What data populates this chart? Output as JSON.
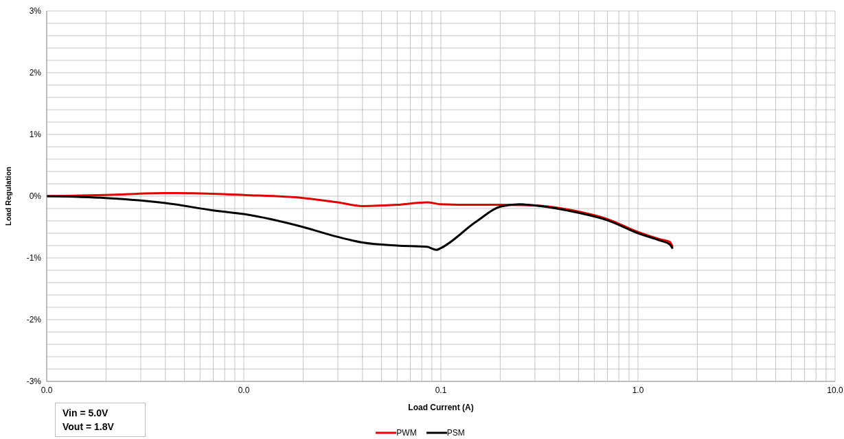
{
  "chart_data": {
    "type": "line",
    "xlabel": "Load Current (A)",
    "ylabel": "Load Regulation",
    "log": "x",
    "grid": true,
    "legend": "bottom",
    "marker": "none",
    "line_style": "solid",
    "xlim": [
      0.001,
      10
    ],
    "xticks": [
      {
        "value": 0.001,
        "label": "0.0"
      },
      {
        "value": 0.002,
        "label": null
      },
      {
        "value": 0.003,
        "label": null
      },
      {
        "value": 0.004,
        "label": null
      },
      {
        "value": 0.005,
        "label": null
      },
      {
        "value": 0.006,
        "label": null
      },
      {
        "value": 0.007,
        "label": null
      },
      {
        "value": 0.008,
        "label": null
      },
      {
        "value": 0.009,
        "label": null
      },
      {
        "value": 0.01,
        "label": "0.0"
      },
      {
        "value": 0.02,
        "label": null
      },
      {
        "value": 0.03,
        "label": null
      },
      {
        "value": 0.04,
        "label": null
      },
      {
        "value": 0.05,
        "label": null
      },
      {
        "value": 0.06,
        "label": null
      },
      {
        "value": 0.07,
        "label": null
      },
      {
        "value": 0.08,
        "label": null
      },
      {
        "value": 0.09,
        "label": null
      },
      {
        "value": 0.1,
        "label": "0.1"
      },
      {
        "value": 0.2,
        "label": null
      },
      {
        "value": 0.3,
        "label": null
      },
      {
        "value": 0.4,
        "label": null
      },
      {
        "value": 0.5,
        "label": null
      },
      {
        "value": 0.6,
        "label": null
      },
      {
        "value": 0.7,
        "label": null
      },
      {
        "value": 0.8,
        "label": null
      },
      {
        "value": 0.9,
        "label": null
      },
      {
        "value": 1,
        "label": "1.0"
      },
      {
        "value": 2,
        "label": null
      },
      {
        "value": 3,
        "label": null
      },
      {
        "value": 4,
        "label": null
      },
      {
        "value": 5,
        "label": null
      },
      {
        "value": 6,
        "label": null
      },
      {
        "value": 7,
        "label": null
      },
      {
        "value": 8,
        "label": null
      },
      {
        "value": 9,
        "label": null
      },
      {
        "value": 10,
        "label": "10.0"
      }
    ],
    "ylim": [
      -3,
      3
    ],
    "yticks": [
      {
        "value": -3,
        "label": "-3%"
      },
      {
        "value": -2.8,
        "label": null
      },
      {
        "value": -2.6,
        "label": null
      },
      {
        "value": -2.4,
        "label": null
      },
      {
        "value": -2.2,
        "label": null
      },
      {
        "value": -2,
        "label": "-2%"
      },
      {
        "value": -1.8,
        "label": null
      },
      {
        "value": -1.6,
        "label": null
      },
      {
        "value": -1.4,
        "label": null
      },
      {
        "value": -1.2,
        "label": null
      },
      {
        "value": -1,
        "label": "-1%"
      },
      {
        "value": -0.8,
        "label": null
      },
      {
        "value": -0.6,
        "label": null
      },
      {
        "value": -0.4,
        "label": null
      },
      {
        "value": -0.2,
        "label": null
      },
      {
        "value": 0,
        "label": "0%"
      },
      {
        "value": 0.2,
        "label": null
      },
      {
        "value": 0.4,
        "label": null
      },
      {
        "value": 0.6,
        "label": null
      },
      {
        "value": 0.8,
        "label": null
      },
      {
        "value": 1,
        "label": "1%"
      },
      {
        "value": 1.2,
        "label": null
      },
      {
        "value": 1.4,
        "label": null
      },
      {
        "value": 1.6,
        "label": null
      },
      {
        "value": 1.8,
        "label": null
      },
      {
        "value": 2,
        "label": "2%"
      },
      {
        "value": 2.2,
        "label": null
      },
      {
        "value": 2.4,
        "label": null
      },
      {
        "value": 2.6,
        "label": null
      },
      {
        "value": 2.8,
        "label": null
      },
      {
        "value": 3,
        "label": "3%"
      }
    ],
    "annotations": [
      "Vin = 5.0V\nVout = 1.8V"
    ],
    "series": [
      {
        "name": "PWM",
        "color": "#e00000",
        "x": [
          0.001,
          0.002,
          0.004,
          0.007,
          0.01,
          0.02,
          0.03,
          0.04,
          0.06,
          0.085,
          0.1,
          0.15,
          0.2,
          0.3,
          0.5,
          0.7,
          1.0,
          1.3,
          1.45,
          1.5
        ],
        "values": [
          0,
          0.02,
          0.05,
          0.04,
          0.02,
          -0.03,
          -0.1,
          -0.16,
          -0.14,
          -0.1,
          -0.13,
          -0.14,
          -0.14,
          -0.15,
          -0.25,
          -0.37,
          -0.58,
          -0.7,
          -0.74,
          -0.82
        ]
      },
      {
        "name": "PSM",
        "color": "#000000",
        "x": [
          0.001,
          0.002,
          0.004,
          0.007,
          0.01,
          0.02,
          0.03,
          0.04,
          0.06,
          0.085,
          0.095,
          0.1,
          0.15,
          0.2,
          0.25,
          0.3,
          0.5,
          0.7,
          1.0,
          1.3,
          1.45,
          1.5
        ],
        "values": [
          0,
          -0.03,
          -0.11,
          -0.23,
          -0.29,
          -0.5,
          -0.66,
          -0.75,
          -0.8,
          -0.82,
          -0.87,
          -0.84,
          -0.42,
          -0.17,
          -0.13,
          -0.15,
          -0.27,
          -0.39,
          -0.6,
          -0.72,
          -0.78,
          -0.85
        ]
      }
    ]
  }
}
